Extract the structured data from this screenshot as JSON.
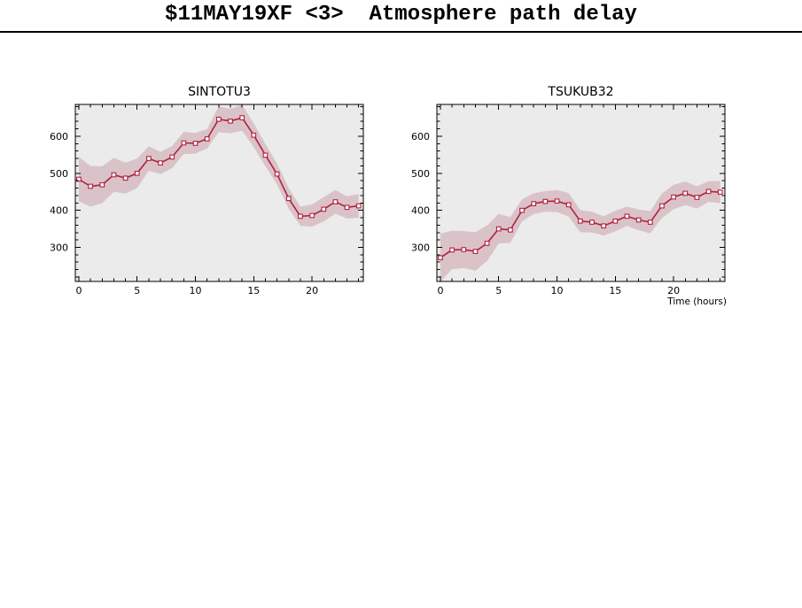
{
  "header": {
    "title": "$11MAY19XF <3>  Atmosphere path delay"
  },
  "colors": {
    "line": "#b2203f",
    "marker_fill": "#ffffff",
    "band": "#d9c3c9",
    "plot_bg": "#ebebeb",
    "frame": "#000000",
    "text": "#000000"
  },
  "chart_data": [
    {
      "type": "line",
      "title": "SINTOTU3",
      "marker": "open-square",
      "band_style": "shaded error band",
      "grid": false,
      "xlabel": "",
      "ylabel": "",
      "xlim": [
        -0.3,
        24.4
      ],
      "ylim": [
        208,
        686
      ],
      "xticks": [
        0,
        5,
        10,
        15,
        20
      ],
      "yticks": [
        300,
        400,
        500,
        600
      ],
      "minor_x_step": 1,
      "minor_y_step": 20,
      "x": [
        0,
        1,
        2,
        3,
        4,
        5,
        6,
        7,
        8,
        9,
        10,
        11,
        12,
        13,
        14,
        15,
        16,
        17,
        18,
        19,
        20,
        21,
        22,
        23,
        24
      ],
      "values": [
        484,
        465,
        469,
        496,
        487,
        500,
        540,
        528,
        544,
        582,
        581,
        593,
        646,
        641,
        650,
        603,
        549,
        498,
        432,
        384,
        386,
        403,
        423,
        408,
        412
      ],
      "band_halfwidth": [
        60,
        55,
        50,
        46,
        42,
        40,
        33,
        30,
        30,
        30,
        28,
        26,
        35,
        33,
        35,
        32,
        30,
        28,
        28,
        26,
        30,
        33,
        32,
        30,
        32
      ]
    },
    {
      "type": "line",
      "title": "TSUKUB32",
      "marker": "open-square",
      "band_style": "shaded error band",
      "grid": false,
      "xlabel": "Time (hours)",
      "ylabel": "",
      "xlim": [
        -0.3,
        24.4
      ],
      "ylim": [
        208,
        686
      ],
      "xticks": [
        0,
        5,
        10,
        15,
        20
      ],
      "yticks": [
        300,
        400,
        500,
        600
      ],
      "minor_x_step": 1,
      "minor_y_step": 20,
      "x": [
        0,
        1,
        2,
        3,
        4,
        5,
        6,
        7,
        8,
        9,
        10,
        11,
        12,
        13,
        14,
        15,
        16,
        17,
        18,
        19,
        20,
        21,
        22,
        23,
        24
      ],
      "values": [
        272,
        293,
        294,
        289,
        311,
        350,
        347,
        400,
        418,
        424,
        425,
        415,
        371,
        368,
        358,
        371,
        384,
        374,
        368,
        412,
        436,
        446,
        435,
        451,
        449
      ],
      "band_halfwidth": [
        65,
        52,
        50,
        52,
        48,
        40,
        35,
        30,
        28,
        28,
        30,
        32,
        30,
        28,
        26,
        28,
        26,
        28,
        30,
        33,
        33,
        32,
        30,
        28,
        30
      ]
    }
  ]
}
